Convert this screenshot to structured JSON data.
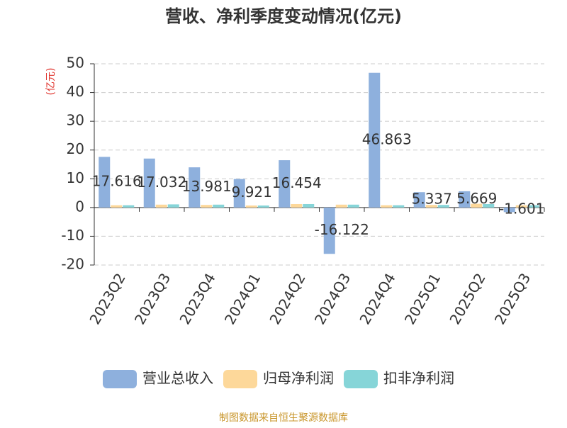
{
  "chart_data": {
    "type": "bar",
    "title": "营收、净利季度变动情况(亿元)",
    "y_label": "(亿元)",
    "source": "制图数据来自恒生聚源数据库",
    "categories": [
      "2023Q2",
      "2023Q3",
      "2023Q4",
      "2024Q1",
      "2024Q2",
      "2024Q3",
      "2024Q4",
      "2025Q1",
      "2025Q2",
      "2025Q3"
    ],
    "series": [
      {
        "name": "营业总收入",
        "color": "#8eb0dd",
        "values": [
          17.616,
          17.032,
          13.981,
          9.921,
          16.454,
          -16.122,
          46.863,
          5.337,
          5.669,
          -1.601
        ]
      },
      {
        "name": "归母净利润",
        "color": "#fdd89a",
        "values": [
          0.8,
          1.0,
          0.9,
          0.7,
          1.2,
          1.0,
          0.8,
          0.9,
          1.3,
          0.8
        ]
      },
      {
        "name": "扣非净利润",
        "color": "#86d5d8",
        "values": [
          0.8,
          1.1,
          1.0,
          0.7,
          1.2,
          1.0,
          0.8,
          0.9,
          1.2,
          0.8
        ]
      }
    ],
    "ylim": [
      -20,
      50
    ],
    "yticks": [
      -20,
      -10,
      0,
      10,
      20,
      30,
      40,
      50
    ],
    "grid": true,
    "legend": "bottom"
  }
}
